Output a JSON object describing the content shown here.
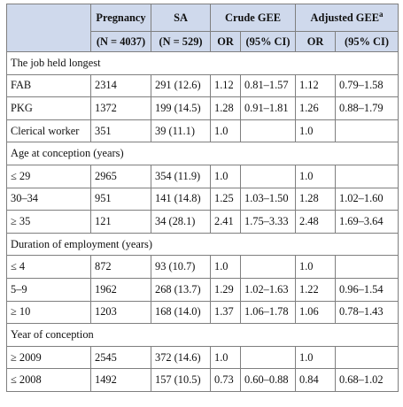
{
  "table": {
    "header": {
      "pregnancy": "Pregnancy",
      "pregnancy_n": "(N = 4037)",
      "sa": "SA",
      "sa_n": "(N = 529)",
      "crude": "Crude GEE",
      "adjusted": "Adjusted GEE",
      "adjusted_sup": "a",
      "or": "OR",
      "ci": "(95% CI)"
    },
    "sections": [
      {
        "title": "The job held longest",
        "rows": [
          {
            "label": "FAB",
            "preg": "2314",
            "sa": "291 (12.6)",
            "cor": "1.12",
            "cci": "0.81–1.57",
            "aor": "1.12",
            "aci": "0.79–1.58"
          },
          {
            "label": "PKG",
            "preg": "1372",
            "sa": "199 (14.5)",
            "cor": "1.28",
            "cci": "0.91–1.81",
            "aor": "1.26",
            "aci": "0.88–1.79"
          },
          {
            "label": "Clerical worker",
            "preg": "351",
            "sa": "39 (11.1)",
            "cor": "1.0",
            "cci": "",
            "aor": "1.0",
            "aci": ""
          }
        ]
      },
      {
        "title": "Age at conception (years)",
        "rows": [
          {
            "label": "≤ 29",
            "preg": "2965",
            "sa": "354 (11.9)",
            "cor": "1.0",
            "cci": "",
            "aor": "1.0",
            "aci": ""
          },
          {
            "label": "30–34",
            "preg": "951",
            "sa": "141 (14.8)",
            "cor": "1.25",
            "cci": "1.03–1.50",
            "aor": "1.28",
            "aci": "1.02–1.60"
          },
          {
            "label": "≥ 35",
            "preg": "121",
            "sa": "34 (28.1)",
            "cor": "2.41",
            "cci": "1.75–3.33",
            "aor": "2.48",
            "aci": "1.69–3.64"
          }
        ]
      },
      {
        "title": "Duration of employment (years)",
        "rows": [
          {
            "label": "≤ 4",
            "preg": "872",
            "sa": "93 (10.7)",
            "cor": "1.0",
            "cci": "",
            "aor": "1.0",
            "aci": ""
          },
          {
            "label": "5–9",
            "preg": "1962",
            "sa": "268 (13.7)",
            "cor": "1.29",
            "cci": "1.02–1.63",
            "aor": "1.22",
            "aci": "0.96–1.54"
          },
          {
            "label": "≥ 10",
            "preg": "1203",
            "sa": "168 (14.0)",
            "cor": "1.37",
            "cci": "1.06–1.78",
            "aor": "1.06",
            "aci": "0.78–1.43"
          }
        ]
      },
      {
        "title": "Year of conception",
        "rows": [
          {
            "label": "≥ 2009",
            "preg": "2545",
            "sa": "372 (14.6)",
            "cor": "1.0",
            "cci": "",
            "aor": "1.0",
            "aci": ""
          },
          {
            "label": "≤ 2008",
            "preg": "1492",
            "sa": "157 (10.5)",
            "cor": "0.73",
            "cci": "0.60–0.88",
            "aor": "0.84",
            "aci": "0.68–1.02"
          }
        ]
      }
    ]
  }
}
